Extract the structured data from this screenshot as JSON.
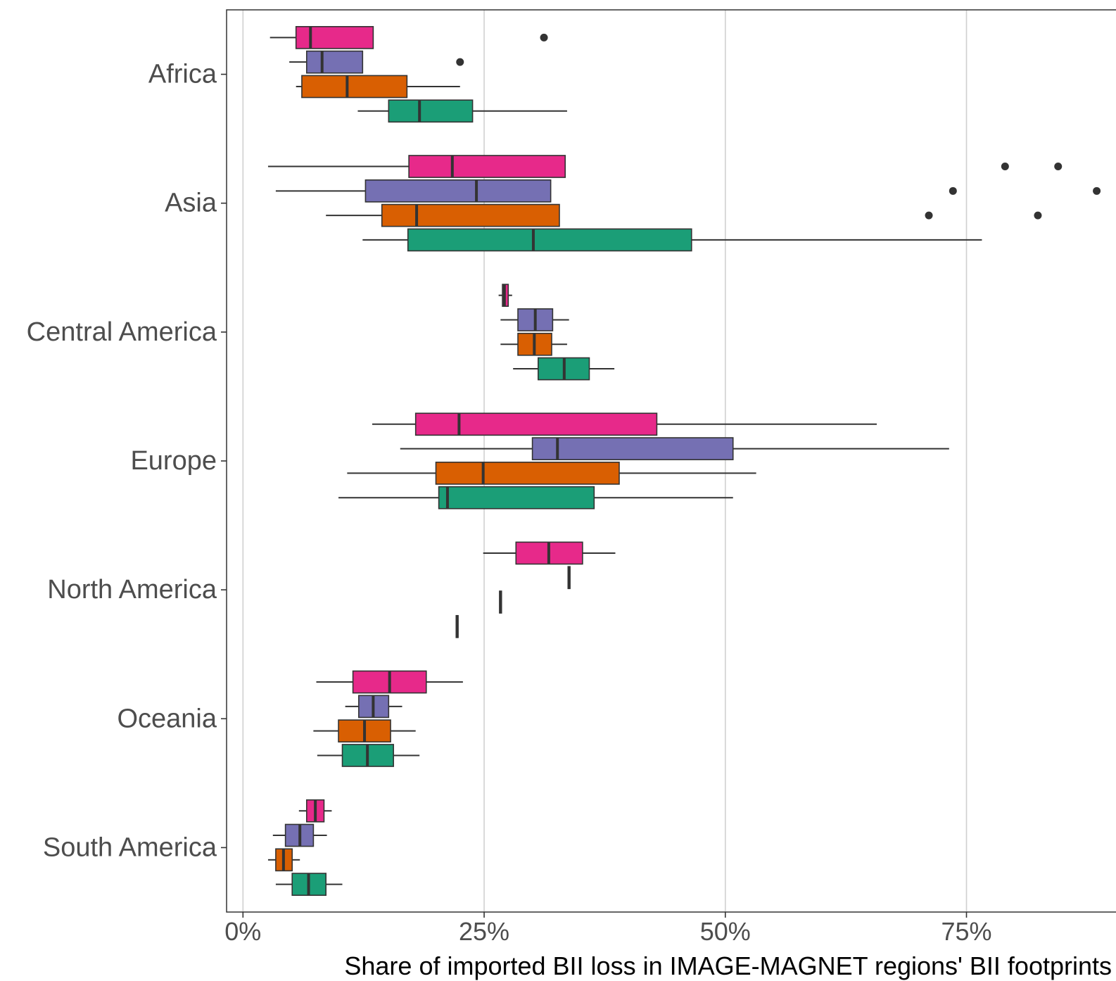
{
  "chart_data": {
    "type": "boxplot",
    "orientation": "horizontal",
    "title": "",
    "xlabel": "Share of imported BII loss in IMAGE-MAGNET regions' BII footprints",
    "ylabel": "",
    "xlim": [
      -0.017,
      0.905
    ],
    "xticks": [
      0,
      0.25,
      0.5,
      0.75
    ],
    "xtick_labels": [
      "0%",
      "25%",
      "50%",
      "75%"
    ],
    "grid": "vertical major gridlines",
    "legend": "none",
    "categories": [
      "Africa",
      "Asia",
      "Central America",
      "Europe",
      "North America",
      "Oceania",
      "South America"
    ],
    "series_colors": [
      "#e7298a",
      "#7570b3",
      "#d95f02",
      "#1b9e77"
    ],
    "boxes": [
      {
        "category": "Africa",
        "series": 0,
        "min": 0.028,
        "q1": 0.055,
        "median": 0.07,
        "q3": 0.135,
        "max": 0.135,
        "outliers": [
          0.312
        ]
      },
      {
        "category": "Africa",
        "series": 1,
        "min": 0.048,
        "q1": 0.066,
        "median": 0.082,
        "q3": 0.124,
        "max": 0.124,
        "outliers": [
          0.225
        ]
      },
      {
        "category": "Africa",
        "series": 2,
        "min": 0.055,
        "q1": 0.061,
        "median": 0.108,
        "q3": 0.17,
        "max": 0.225,
        "outliers": []
      },
      {
        "category": "Africa",
        "series": 3,
        "min": 0.119,
        "q1": 0.151,
        "median": 0.183,
        "q3": 0.238,
        "max": 0.336,
        "outliers": []
      },
      {
        "category": "Asia",
        "series": 0,
        "min": 0.026,
        "q1": 0.172,
        "median": 0.217,
        "q3": 0.334,
        "max": 0.334,
        "outliers": [
          0.79,
          0.845
        ]
      },
      {
        "category": "Asia",
        "series": 1,
        "min": 0.034,
        "q1": 0.127,
        "median": 0.242,
        "q3": 0.319,
        "max": 0.319,
        "outliers": [
          0.736,
          0.885
        ]
      },
      {
        "category": "Asia",
        "series": 2,
        "min": 0.086,
        "q1": 0.144,
        "median": 0.18,
        "q3": 0.328,
        "max": 0.328,
        "outliers": [
          0.711,
          0.824
        ]
      },
      {
        "category": "Asia",
        "series": 3,
        "min": 0.124,
        "q1": 0.171,
        "median": 0.301,
        "q3": 0.465,
        "max": 0.766,
        "outliers": []
      },
      {
        "category": "Central America",
        "series": 0,
        "min": 0.265,
        "q1": 0.269,
        "median": 0.271,
        "q3": 0.275,
        "max": 0.279,
        "outliers": []
      },
      {
        "category": "Central America",
        "series": 1,
        "min": 0.267,
        "q1": 0.285,
        "median": 0.303,
        "q3": 0.321,
        "max": 0.338,
        "outliers": []
      },
      {
        "category": "Central America",
        "series": 2,
        "min": 0.267,
        "q1": 0.285,
        "median": 0.302,
        "q3": 0.32,
        "max": 0.336,
        "outliers": []
      },
      {
        "category": "Central America",
        "series": 3,
        "min": 0.28,
        "q1": 0.306,
        "median": 0.333,
        "q3": 0.359,
        "max": 0.385,
        "outliers": []
      },
      {
        "category": "Europe",
        "series": 0,
        "min": 0.134,
        "q1": 0.179,
        "median": 0.224,
        "q3": 0.429,
        "max": 0.657,
        "outliers": []
      },
      {
        "category": "Europe",
        "series": 1,
        "min": 0.163,
        "q1": 0.3,
        "median": 0.326,
        "q3": 0.508,
        "max": 0.732,
        "outliers": []
      },
      {
        "category": "Europe",
        "series": 2,
        "min": 0.108,
        "q1": 0.2,
        "median": 0.249,
        "q3": 0.39,
        "max": 0.532,
        "outliers": []
      },
      {
        "category": "Europe",
        "series": 3,
        "min": 0.099,
        "q1": 0.203,
        "median": 0.212,
        "q3": 0.364,
        "max": 0.508,
        "outliers": []
      },
      {
        "category": "North America",
        "series": 0,
        "min": 0.249,
        "q1": 0.283,
        "median": 0.317,
        "q3": 0.352,
        "max": 0.386,
        "outliers": []
      },
      {
        "category": "North America",
        "series": 1,
        "min": 0.337,
        "q1": 0.337,
        "median": 0.338,
        "q3": 0.339,
        "max": 0.339,
        "outliers": []
      },
      {
        "category": "North America",
        "series": 2,
        "min": 0.266,
        "q1": 0.266,
        "median": 0.267,
        "q3": 0.268,
        "max": 0.268,
        "outliers": []
      },
      {
        "category": "North America",
        "series": 3,
        "min": 0.221,
        "q1": 0.221,
        "median": 0.222,
        "q3": 0.223,
        "max": 0.223,
        "outliers": []
      },
      {
        "category": "Oceania",
        "series": 0,
        "min": 0.076,
        "q1": 0.114,
        "median": 0.152,
        "q3": 0.19,
        "max": 0.228,
        "outliers": []
      },
      {
        "category": "Oceania",
        "series": 1,
        "min": 0.106,
        "q1": 0.12,
        "median": 0.135,
        "q3": 0.151,
        "max": 0.165,
        "outliers": []
      },
      {
        "category": "Oceania",
        "series": 2,
        "min": 0.073,
        "q1": 0.099,
        "median": 0.126,
        "q3": 0.153,
        "max": 0.179,
        "outliers": []
      },
      {
        "category": "Oceania",
        "series": 3,
        "min": 0.077,
        "q1": 0.103,
        "median": 0.129,
        "q3": 0.156,
        "max": 0.183,
        "outliers": []
      },
      {
        "category": "South America",
        "series": 0,
        "min": 0.058,
        "q1": 0.066,
        "median": 0.075,
        "q3": 0.084,
        "max": 0.092,
        "outliers": []
      },
      {
        "category": "South America",
        "series": 1,
        "min": 0.031,
        "q1": 0.044,
        "median": 0.059,
        "q3": 0.073,
        "max": 0.087,
        "outliers": []
      },
      {
        "category": "South America",
        "series": 2,
        "min": 0.026,
        "q1": 0.034,
        "median": 0.042,
        "q3": 0.051,
        "max": 0.059,
        "outliers": []
      },
      {
        "category": "South America",
        "series": 3,
        "min": 0.034,
        "q1": 0.051,
        "median": 0.068,
        "q3": 0.086,
        "max": 0.103,
        "outliers": []
      }
    ]
  }
}
